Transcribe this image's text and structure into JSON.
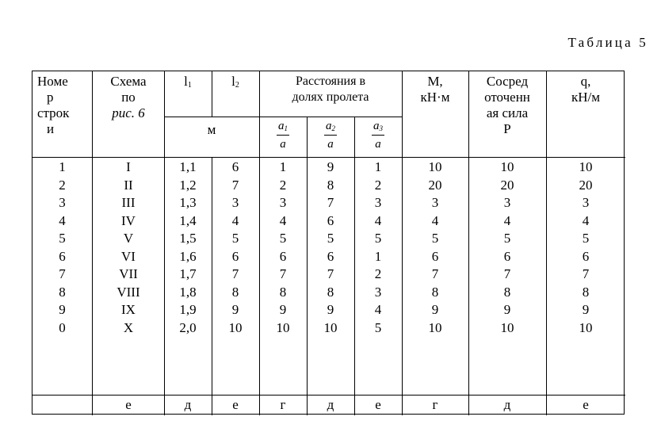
{
  "caption": "Таблица 5",
  "headers": {
    "row_no": [
      "Номе",
      "р",
      "строк",
      "и"
    ],
    "scheme": [
      "Схема",
      "по",
      "рис. 6"
    ],
    "l1": "l",
    "l1_sub": "1",
    "l2": "l",
    "l2_sub": "2",
    "lengths_unit": "м",
    "distances": [
      "Расстояния в",
      "долях пролета"
    ],
    "a1": {
      "num": "a",
      "sub": "1",
      "den": "a"
    },
    "a2": {
      "num": "a",
      "sub": "2",
      "den": "a"
    },
    "a3": {
      "num": "a",
      "sub": "3",
      "den": "a"
    },
    "moment": [
      "М,",
      "кН·м"
    ],
    "force": [
      "Сосред",
      "оточенн",
      "ая сила",
      "Р"
    ],
    "q": [
      "q,",
      "кН/м"
    ]
  },
  "rows": [
    [
      "1",
      "I",
      "1,1",
      "6",
      "1",
      "9",
      "1",
      "10",
      "10",
      "10"
    ],
    [
      "2",
      "II",
      "1,2",
      "7",
      "2",
      "8",
      "2",
      "20",
      "20",
      "20"
    ],
    [
      "3",
      "III",
      "1,3",
      "3",
      "3",
      "7",
      "3",
      "3",
      "3",
      "3"
    ],
    [
      "4",
      "IV",
      "1,4",
      "4",
      "4",
      "6",
      "4",
      "4",
      "4",
      "4"
    ],
    [
      "5",
      "V",
      "1,5",
      "5",
      "5",
      "5",
      "5",
      "5",
      "5",
      "5"
    ],
    [
      "6",
      "VI",
      "1,6",
      "6",
      "6",
      "6",
      "1",
      "6",
      "6",
      "6"
    ],
    [
      "7",
      "VII",
      "1,7",
      "7",
      "7",
      "7",
      "2",
      "7",
      "7",
      "7"
    ],
    [
      "8",
      "VIII",
      "1,8",
      "8",
      "8",
      "8",
      "3",
      "8",
      "8",
      "8"
    ],
    [
      "9",
      "IX",
      "1,9",
      "9",
      "9",
      "9",
      "4",
      "9",
      "9",
      "9"
    ],
    [
      "0",
      "X",
      "2,0",
      "10",
      "10",
      "10",
      "5",
      "10",
      "10",
      "10"
    ]
  ],
  "footer": [
    "",
    "е",
    "д",
    "е",
    "г",
    "д",
    "е",
    "г",
    "д",
    "е"
  ]
}
